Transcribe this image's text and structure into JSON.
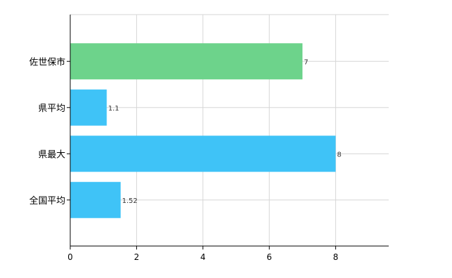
{
  "chart_data": {
    "type": "bar",
    "orientation": "horizontal",
    "categories": [
      "佐世保市",
      "県平均",
      "県最大",
      "全国平均"
    ],
    "values": [
      7,
      1.1,
      8,
      1.52
    ],
    "data_labels": [
      "7",
      "1.1",
      "8",
      "1.52"
    ],
    "bar_colors": [
      "#6dd38b",
      "#3fc3f7",
      "#3fc3f7",
      "#3fc3f7"
    ],
    "xlim": [
      0,
      9.6
    ],
    "xticks": [
      0,
      2,
      4,
      6,
      8
    ],
    "grid": true,
    "legend": "none"
  }
}
